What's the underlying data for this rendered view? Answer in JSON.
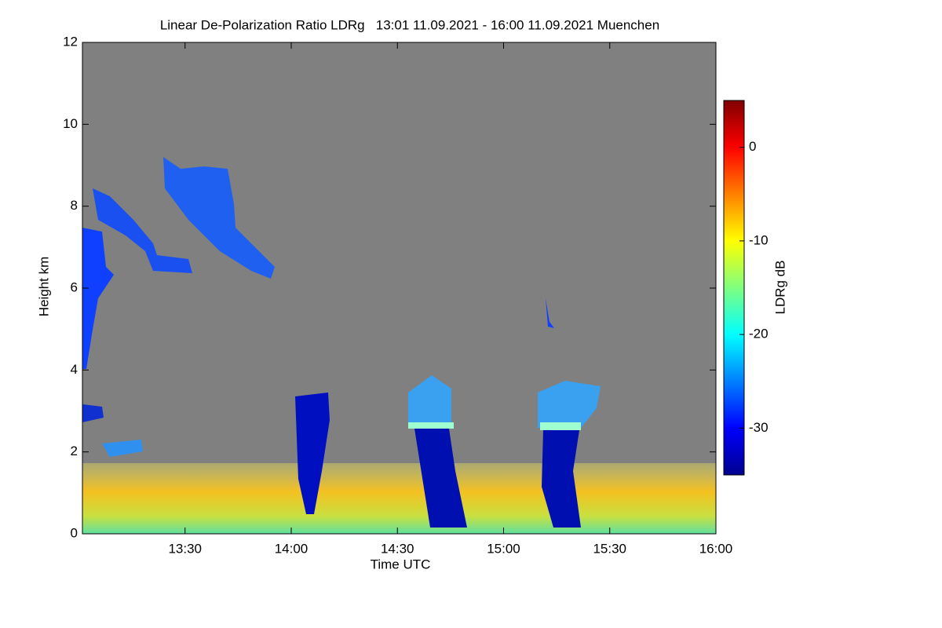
{
  "chart_data": {
    "type": "heatmap",
    "title": "Linear De-Polarization Ratio LDRg   13:01 11.09.2021 - 16:00 11.09.2021 Muenchen",
    "x_label": "Time UTC",
    "y_label": "Height km",
    "xlim": [
      781,
      960
    ],
    "xticks": [
      {
        "value": 810,
        "label": "13:30"
      },
      {
        "value": 840,
        "label": "14:00"
      },
      {
        "value": 870,
        "label": "14:30"
      },
      {
        "value": 900,
        "label": "15:00"
      },
      {
        "value": 930,
        "label": "15:30"
      },
      {
        "value": 960,
        "label": "16:00"
      }
    ],
    "ylim": [
      0,
      12
    ],
    "yticks": [
      0,
      2,
      4,
      6,
      8,
      10,
      12
    ],
    "colorbar": {
      "label": "LDRg dB",
      "lim": [
        -35,
        5
      ],
      "ticks": [
        -30,
        -20,
        -10,
        0
      ]
    }
  }
}
